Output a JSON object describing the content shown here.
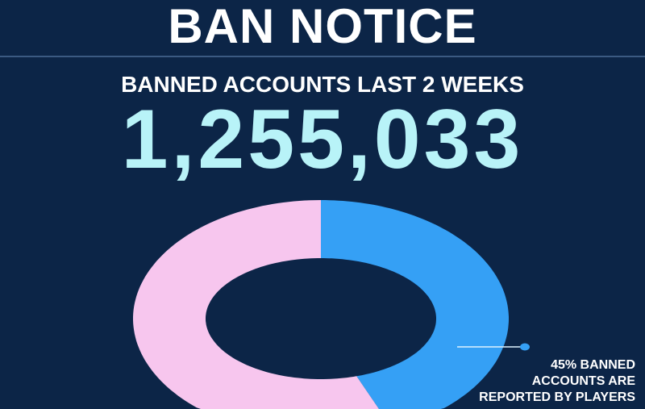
{
  "title": "BAN NOTICE",
  "subtitle": "BANNED ACCOUNTS LAST 2 WEEKS",
  "total": "1,255,033",
  "chart_data": {
    "type": "pie",
    "variant": "donut",
    "slices": [
      {
        "value": 45,
        "color": "#35a0f5"
      },
      {
        "value": 55,
        "color": "#f7c6ee"
      }
    ],
    "annotation": [
      "45% BANNED",
      "ACCOUNTS ARE",
      "REPORTED BY PLAYERS"
    ]
  },
  "colors": {
    "background": "#0c2547",
    "number": "#b8f3f8"
  }
}
